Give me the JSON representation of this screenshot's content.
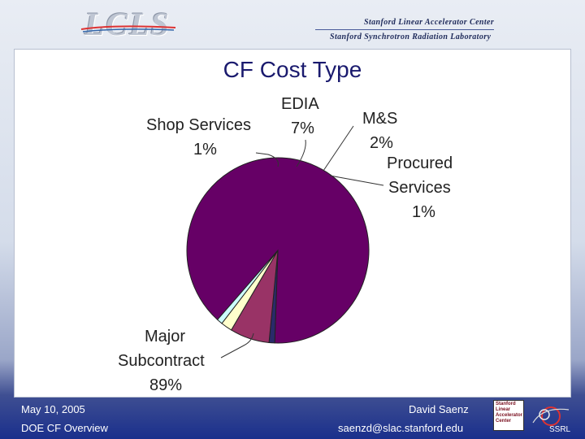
{
  "header": {
    "logo_text": "LCLS",
    "lab_line1": "Stanford Linear Accelerator Center",
    "lab_line2": "Stanford Synchrotron Radiation Laboratory"
  },
  "chart_data": {
    "type": "pie",
    "title": "CF Cost Type",
    "slices": [
      {
        "name": "Major Subcontract",
        "value": 89,
        "label": "89%",
        "color": "#660066"
      },
      {
        "name": "Shop Services",
        "value": 1,
        "label": "1%",
        "color": "#2a2a6a"
      },
      {
        "name": "EDIA",
        "value": 7,
        "label": "7%",
        "color": "#993366"
      },
      {
        "name": "M&S",
        "value": 2,
        "label": "2%",
        "color": "#ffffcc"
      },
      {
        "name": "Procured Services",
        "value": 1,
        "label": "1%",
        "color": "#ccffff"
      }
    ]
  },
  "labels": {
    "shop_line1": "Shop Services",
    "shop_line2": "1%",
    "edia_line1": "EDIA",
    "edia_line2": "7%",
    "ms_line1": "M&S",
    "ms_line2": "2%",
    "proc_line1": "Procured",
    "proc_line2": "Services",
    "proc_line3": "1%",
    "major_line1": "Major",
    "major_line2": "Subcontract",
    "major_line3": "89%"
  },
  "footer": {
    "date": "May 10, 2005",
    "subtitle": "DOE CF Overview",
    "author": "David Saenz",
    "email": "saenzd@slac.stanford.edu",
    "slac_logo": "Stanford Linear Accelerator Center",
    "ssrl_logo": "SSRL"
  }
}
